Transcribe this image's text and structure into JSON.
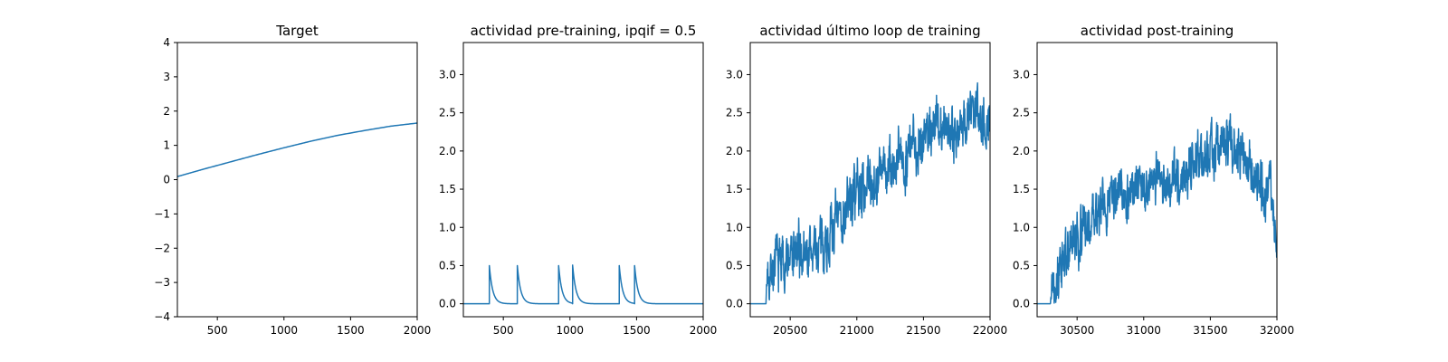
{
  "chart_data": [
    {
      "type": "line",
      "title": "Target",
      "xlim": [
        200,
        2000
      ],
      "ylim": [
        -4,
        4
      ],
      "xticks": [
        500,
        1000,
        1500,
        2000
      ],
      "xtick_labels": [
        "500",
        "1000",
        "1500",
        "2000"
      ],
      "yticks": [
        -4,
        -3,
        -2,
        -1,
        0,
        1,
        2,
        3,
        4
      ],
      "ytick_labels": [
        "−4",
        "−3",
        "−2",
        "−1",
        "0",
        "1",
        "2",
        "3",
        "4"
      ],
      "grid": false,
      "series": [
        {
          "color": "#1f77b4",
          "kind": "curve",
          "points": [
            [
              200,
              0.09
            ],
            [
              400,
              0.31
            ],
            [
              600,
              0.52
            ],
            [
              800,
              0.73
            ],
            [
              1000,
              0.93
            ],
            [
              1200,
              1.12
            ],
            [
              1400,
              1.29
            ],
            [
              1600,
              1.43
            ],
            [
              1800,
              1.56
            ],
            [
              2000,
              1.65
            ]
          ]
        }
      ]
    },
    {
      "type": "line",
      "title": "actividad pre-training, ipqif = 0.5",
      "xlim": [
        200,
        2000
      ],
      "ylim": [
        -0.17,
        3.42
      ],
      "xticks": [
        500,
        1000,
        1500,
        2000
      ],
      "xtick_labels": [
        "500",
        "1000",
        "1500",
        "2000"
      ],
      "yticks": [
        0.0,
        0.5,
        1.0,
        1.5,
        2.0,
        2.5,
        3.0
      ],
      "ytick_labels": [
        "0.0",
        "0.5",
        "1.0",
        "1.5",
        "2.0",
        "2.5",
        "3.0"
      ],
      "grid": false,
      "series": [
        {
          "color": "#1f77b4",
          "kind": "spikes",
          "baseline": 0.0,
          "decay_tau": 25,
          "spikes": [
            [
              395,
              0.5
            ],
            [
              605,
              0.5
            ],
            [
              915,
              0.5
            ],
            [
              1020,
              0.5
            ],
            [
              1370,
              0.5
            ],
            [
              1485,
              0.5
            ]
          ]
        }
      ]
    },
    {
      "type": "line",
      "title": "actividad último loop de training",
      "xlim": [
        20200,
        22000
      ],
      "ylim": [
        -0.17,
        3.42
      ],
      "xticks": [
        20500,
        21000,
        21500,
        22000
      ],
      "xtick_labels": [
        "20500",
        "21000",
        "21500",
        "22000"
      ],
      "yticks": [
        0.0,
        0.5,
        1.0,
        1.5,
        2.0,
        2.5,
        3.0
      ],
      "ytick_labels": [
        "0.0",
        "0.5",
        "1.0",
        "1.5",
        "2.0",
        "2.5",
        "3.0"
      ],
      "grid": false,
      "series": [
        {
          "color": "#1f77b4",
          "kind": "noisy",
          "start": 20320,
          "noise": 0.28,
          "seed": 7,
          "envelope": [
            [
              20200,
              0.0
            ],
            [
              20320,
              0.0
            ],
            [
              20330,
              0.45
            ],
            [
              20420,
              0.55
            ],
            [
              20500,
              0.6
            ],
            [
              20600,
              0.65
            ],
            [
              20700,
              0.7
            ],
            [
              20800,
              0.9
            ],
            [
              20900,
              1.2
            ],
            [
              21000,
              1.5
            ],
            [
              21100,
              1.6
            ],
            [
              21200,
              1.7
            ],
            [
              21300,
              1.8
            ],
            [
              21400,
              2.0
            ],
            [
              21500,
              2.2
            ],
            [
              21600,
              2.35
            ],
            [
              21700,
              2.3
            ],
            [
              21800,
              2.3
            ],
            [
              21900,
              2.6
            ],
            [
              22000,
              2.3
            ]
          ]
        }
      ]
    },
    {
      "type": "line",
      "title": "actividad post-training",
      "xlim": [
        30200,
        32000
      ],
      "ylim": [
        -0.17,
        3.42
      ],
      "xticks": [
        30500,
        31000,
        31500,
        32000
      ],
      "xtick_labels": [
        "30500",
        "31000",
        "31500",
        "32000"
      ],
      "yticks": [
        0.0,
        0.5,
        1.0,
        1.5,
        2.0,
        2.5,
        3.0
      ],
      "ytick_labels": [
        "0.0",
        "0.5",
        "1.0",
        "1.5",
        "2.0",
        "2.5",
        "3.0"
      ],
      "grid": false,
      "series": [
        {
          "color": "#1f77b4",
          "kind": "noisy",
          "start": 30300,
          "noise": 0.25,
          "seed": 13,
          "envelope": [
            [
              30200,
              0.0
            ],
            [
              30300,
              0.0
            ],
            [
              30310,
              0.35
            ],
            [
              30400,
              0.55
            ],
            [
              30500,
              0.85
            ],
            [
              30600,
              1.05
            ],
            [
              30700,
              1.3
            ],
            [
              30800,
              1.45
            ],
            [
              30900,
              1.4
            ],
            [
              31000,
              1.5
            ],
            [
              31100,
              1.6
            ],
            [
              31200,
              1.55
            ],
            [
              31300,
              1.7
            ],
            [
              31400,
              1.9
            ],
            [
              31500,
              2.05
            ],
            [
              31600,
              2.1
            ],
            [
              31700,
              2.0
            ],
            [
              31800,
              1.8
            ],
            [
              31900,
              1.55
            ],
            [
              31950,
              1.5
            ],
            [
              32000,
              0.8
            ]
          ]
        }
      ]
    }
  ]
}
